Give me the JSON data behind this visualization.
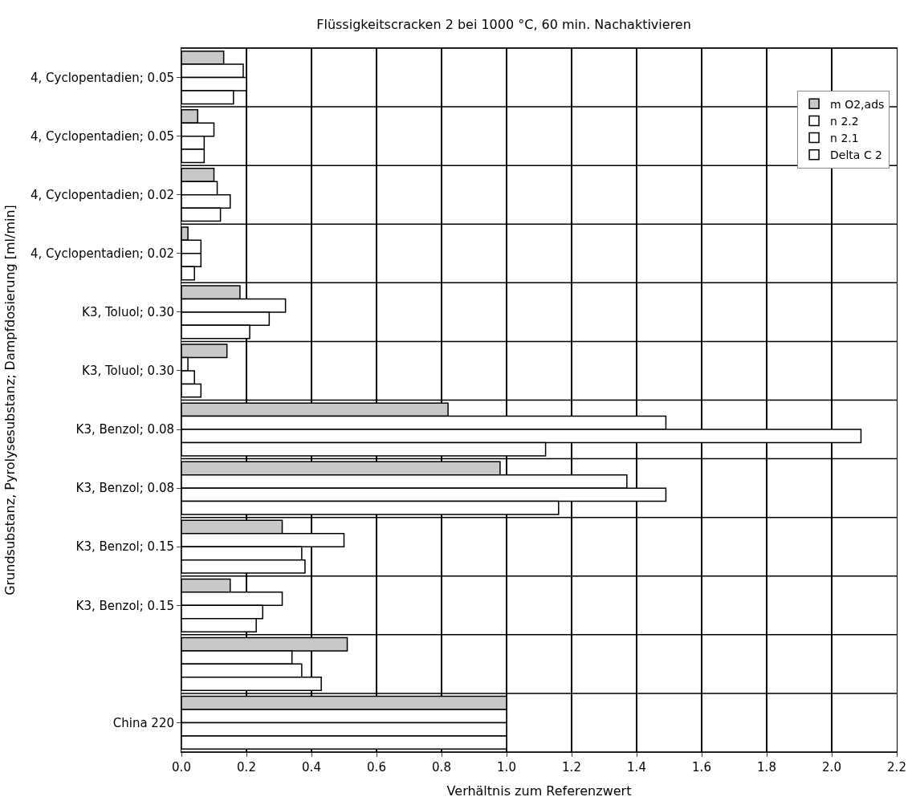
{
  "chart_data": {
    "type": "bar",
    "orientation": "horizontal",
    "title": "Flüssigkeitscracken 2 bei 1000 °C, 60 min. Nachaktivieren",
    "xlabel": "Verhältnis zum Referenzwert",
    "ylabel": "Grundsubstanz, Pyrolysesubstanz; Dampfdosierung [ml/min]",
    "categories": [
      "4, Cyclopentadien; 0.05",
      "4, Cyclopentadien; 0.05",
      "4, Cyclopentadien; 0.02",
      "4, Cyclopentadien; 0.02",
      "K3, Toluol; 0.30",
      "K3, Toluol; 0.30",
      "K3, Benzol; 0.08",
      "K3, Benzol; 0.08",
      "K3, Benzol; 0.15",
      "K3, Benzol; 0.15",
      null,
      "China 220"
    ],
    "series": [
      {
        "name": "m O2,ads",
        "color": "#c8c8c8",
        "values": [
          0.13,
          0.05,
          0.1,
          0.02,
          0.18,
          0.14,
          0.82,
          0.98,
          0.31,
          0.15,
          0.51,
          1.0
        ]
      },
      {
        "name": "n 2.2",
        "color": "#ffffff",
        "values": [
          0.19,
          0.1,
          0.11,
          0.06,
          0.32,
          0.02,
          1.49,
          1.37,
          0.5,
          0.31,
          0.34,
          1.0
        ]
      },
      {
        "name": "n 2.1",
        "color": "#ffffff",
        "values": [
          0.2,
          0.07,
          0.15,
          0.06,
          0.27,
          0.04,
          2.09,
          1.49,
          0.37,
          0.25,
          0.37,
          1.0
        ]
      },
      {
        "name": "Delta C 2",
        "color": "#ffffff",
        "values": [
          0.16,
          0.07,
          0.12,
          0.04,
          0.21,
          0.06,
          1.12,
          1.16,
          0.38,
          0.23,
          0.43,
          1.0
        ]
      }
    ],
    "xlim": [
      0.0,
      2.2
    ],
    "xticks": [
      {
        "value": 0,
        "label": "0.0"
      },
      {
        "value": 0.2,
        "label": "0.2"
      },
      {
        "value": 0.4,
        "label": "0.4"
      },
      {
        "value": 0.6,
        "label": "0.6"
      },
      {
        "value": 0.8,
        "label": "0.8"
      },
      {
        "value": 1.0,
        "label": "1.0"
      },
      {
        "value": 1.2,
        "label": "1.2"
      },
      {
        "value": 1.4,
        "label": "1.4"
      },
      {
        "value": 1.6,
        "label": "1.6"
      },
      {
        "value": 1.8,
        "label": "1.8"
      },
      {
        "value": 2.0,
        "label": "2.0"
      },
      {
        "value": 2.2,
        "label": "2.2"
      }
    ],
    "grid": true,
    "legend": "top right"
  }
}
